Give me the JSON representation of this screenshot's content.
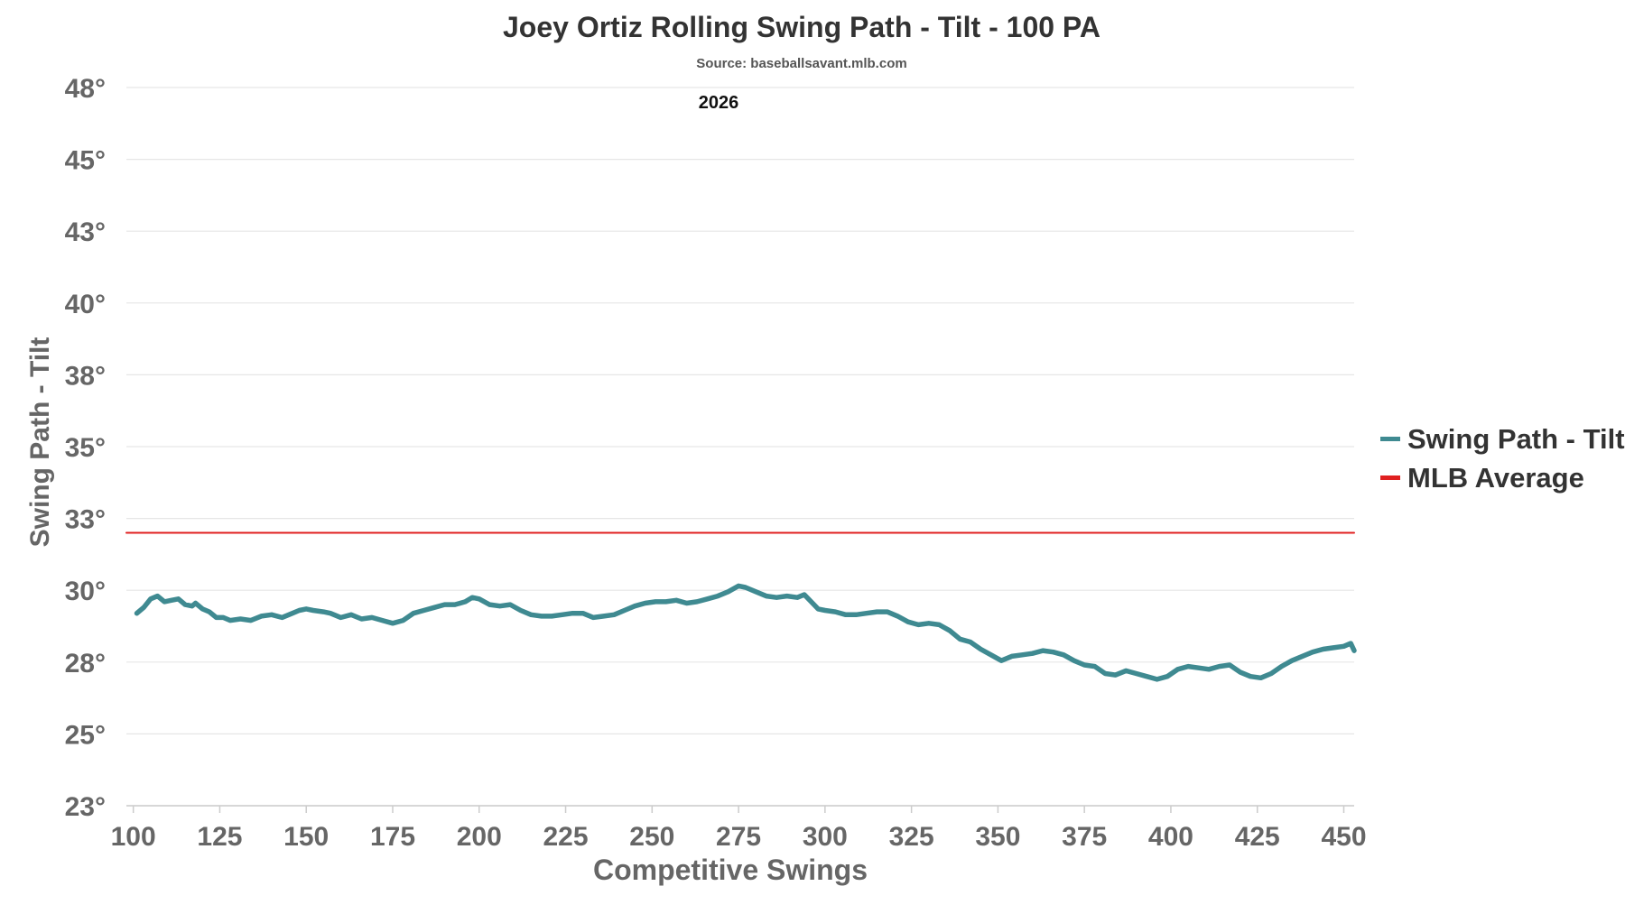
{
  "chart_data": {
    "type": "line",
    "title": "Joey Ortiz Rolling Swing Path - Tilt - 100 PA",
    "subtitle": "Source: baseballsavant.mlb.com",
    "annotation": "2026",
    "xlabel": "Competitive Swings",
    "ylabel": "Swing Path - Tilt",
    "xlim": [
      98,
      453
    ],
    "ylim": [
      22.5,
      47.5
    ],
    "x_ticks": [
      100,
      125,
      150,
      175,
      200,
      225,
      250,
      275,
      300,
      325,
      350,
      375,
      400,
      425,
      450
    ],
    "y_ticks": [
      {
        "value": 22.5,
        "label": "23°"
      },
      {
        "value": 25.0,
        "label": "25°"
      },
      {
        "value": 27.5,
        "label": "28°"
      },
      {
        "value": 30.0,
        "label": "30°"
      },
      {
        "value": 32.5,
        "label": "33°"
      },
      {
        "value": 35.0,
        "label": "35°"
      },
      {
        "value": 37.5,
        "label": "38°"
      },
      {
        "value": 40.0,
        "label": "40°"
      },
      {
        "value": 42.5,
        "label": "43°"
      },
      {
        "value": 45.0,
        "label": "45°"
      },
      {
        "value": 47.5,
        "label": "48°"
      }
    ],
    "grid": true,
    "legend_position": "right",
    "series": [
      {
        "name": "Swing Path - Tilt",
        "color": "#3f8a91",
        "points": [
          [
            101,
            29.2
          ],
          [
            103,
            29.4
          ],
          [
            105,
            29.7
          ],
          [
            107,
            29.8
          ],
          [
            109,
            29.6
          ],
          [
            111,
            29.65
          ],
          [
            113,
            29.7
          ],
          [
            115,
            29.5
          ],
          [
            117,
            29.45
          ],
          [
            118,
            29.55
          ],
          [
            120,
            29.35
          ],
          [
            122,
            29.25
          ],
          [
            124,
            29.05
          ],
          [
            126,
            29.05
          ],
          [
            128,
            28.95
          ],
          [
            131,
            29.0
          ],
          [
            134,
            28.95
          ],
          [
            137,
            29.1
          ],
          [
            140,
            29.15
          ],
          [
            143,
            29.05
          ],
          [
            146,
            29.2
          ],
          [
            148,
            29.3
          ],
          [
            150,
            29.35
          ],
          [
            152,
            29.3
          ],
          [
            155,
            29.25
          ],
          [
            157,
            29.2
          ],
          [
            160,
            29.05
          ],
          [
            163,
            29.15
          ],
          [
            166,
            29.0
          ],
          [
            169,
            29.05
          ],
          [
            172,
            28.95
          ],
          [
            175,
            28.85
          ],
          [
            178,
            28.95
          ],
          [
            181,
            29.2
          ],
          [
            184,
            29.3
          ],
          [
            187,
            29.4
          ],
          [
            190,
            29.5
          ],
          [
            193,
            29.5
          ],
          [
            196,
            29.6
          ],
          [
            198,
            29.75
          ],
          [
            200,
            29.7
          ],
          [
            203,
            29.5
          ],
          [
            206,
            29.45
          ],
          [
            209,
            29.5
          ],
          [
            212,
            29.3
          ],
          [
            215,
            29.15
          ],
          [
            218,
            29.1
          ],
          [
            221,
            29.1
          ],
          [
            224,
            29.15
          ],
          [
            227,
            29.2
          ],
          [
            230,
            29.2
          ],
          [
            233,
            29.05
          ],
          [
            236,
            29.1
          ],
          [
            239,
            29.15
          ],
          [
            242,
            29.3
          ],
          [
            245,
            29.45
          ],
          [
            248,
            29.55
          ],
          [
            251,
            29.6
          ],
          [
            254,
            29.6
          ],
          [
            257,
            29.65
          ],
          [
            260,
            29.55
          ],
          [
            263,
            29.6
          ],
          [
            266,
            29.7
          ],
          [
            269,
            29.8
          ],
          [
            272,
            29.95
          ],
          [
            275,
            30.15
          ],
          [
            277,
            30.1
          ],
          [
            280,
            29.95
          ],
          [
            283,
            29.8
          ],
          [
            286,
            29.75
          ],
          [
            289,
            29.8
          ],
          [
            292,
            29.75
          ],
          [
            294,
            29.85
          ],
          [
            296,
            29.6
          ],
          [
            298,
            29.35
          ],
          [
            300,
            29.3
          ],
          [
            303,
            29.25
          ],
          [
            306,
            29.15
          ],
          [
            309,
            29.15
          ],
          [
            312,
            29.2
          ],
          [
            315,
            29.25
          ],
          [
            318,
            29.25
          ],
          [
            321,
            29.1
          ],
          [
            324,
            28.9
          ],
          [
            327,
            28.8
          ],
          [
            330,
            28.85
          ],
          [
            333,
            28.8
          ],
          [
            336,
            28.6
          ],
          [
            339,
            28.3
          ],
          [
            342,
            28.2
          ],
          [
            345,
            27.95
          ],
          [
            348,
            27.75
          ],
          [
            351,
            27.55
          ],
          [
            354,
            27.7
          ],
          [
            357,
            27.75
          ],
          [
            360,
            27.8
          ],
          [
            363,
            27.9
          ],
          [
            366,
            27.85
          ],
          [
            369,
            27.75
          ],
          [
            372,
            27.55
          ],
          [
            375,
            27.4
          ],
          [
            378,
            27.35
          ],
          [
            381,
            27.1
          ],
          [
            384,
            27.05
          ],
          [
            387,
            27.2
          ],
          [
            390,
            27.1
          ],
          [
            393,
            27.0
          ],
          [
            396,
            26.9
          ],
          [
            399,
            27.0
          ],
          [
            402,
            27.25
          ],
          [
            405,
            27.35
          ],
          [
            408,
            27.3
          ],
          [
            411,
            27.25
          ],
          [
            414,
            27.35
          ],
          [
            417,
            27.4
          ],
          [
            420,
            27.15
          ],
          [
            423,
            27.0
          ],
          [
            426,
            26.95
          ],
          [
            429,
            27.1
          ],
          [
            432,
            27.35
          ],
          [
            435,
            27.55
          ],
          [
            438,
            27.7
          ],
          [
            441,
            27.85
          ],
          [
            444,
            27.95
          ],
          [
            447,
            28.0
          ],
          [
            450,
            28.05
          ],
          [
            452,
            28.15
          ],
          [
            453,
            27.9
          ]
        ]
      },
      {
        "name": "MLB Average",
        "color": "#e02020",
        "points": [
          [
            98,
            32.0
          ],
          [
            453,
            32.0
          ]
        ]
      }
    ]
  }
}
